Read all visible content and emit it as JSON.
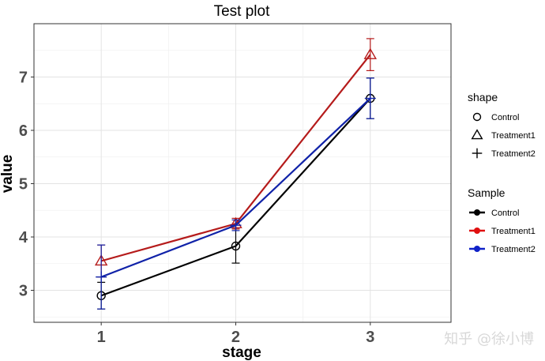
{
  "chart_data": {
    "type": "line",
    "title": "Test plot",
    "xlabel": "stage",
    "ylabel": "value",
    "categories": [
      "1",
      "2",
      "3"
    ],
    "xlim": [
      0.5,
      3.6
    ],
    "ylim": [
      2.4,
      8.0
    ],
    "yticks": [
      3,
      4,
      5,
      6,
      7
    ],
    "grid": true,
    "legend_position": "right",
    "series": [
      {
        "name": "Control",
        "shape": "circle",
        "color": "#000000",
        "values": [
          2.9,
          3.83,
          6.6
        ],
        "err": [
          0.25,
          0.32,
          0.38
        ]
      },
      {
        "name": "Treatment1",
        "shape": "triangle",
        "color": "#b51b1b",
        "values": [
          3.55,
          4.25,
          7.42
        ],
        "err": [
          0.3,
          0.1,
          0.3
        ]
      },
      {
        "name": "Treatment2",
        "shape": "plus",
        "color": "#1022a8",
        "values": [
          3.25,
          4.22,
          6.6
        ],
        "err": [
          0.6,
          0.1,
          0.38
        ]
      }
    ],
    "legends": [
      {
        "title": "shape",
        "kind": "shape",
        "items": [
          {
            "label": "Control",
            "shape": "circle"
          },
          {
            "label": "Treatment1",
            "shape": "triangle"
          },
          {
            "label": "Treatment2",
            "shape": "plus"
          }
        ]
      },
      {
        "title": "Sample",
        "kind": "color",
        "items": [
          {
            "label": "Control",
            "color": "#000000"
          },
          {
            "label": "Treatment1",
            "color": "#e01010"
          },
          {
            "label": "Treatment2",
            "color": "#1022c8"
          }
        ]
      }
    ]
  },
  "watermark": "知乎 @徐小博"
}
